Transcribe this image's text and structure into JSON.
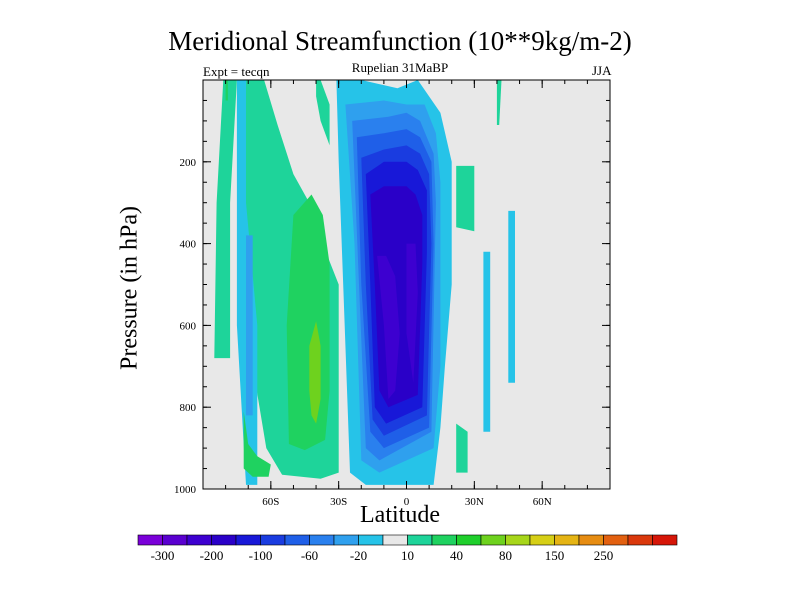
{
  "chart_data": {
    "type": "heatmap",
    "title": "Meridional Streamfunction (10**9kg/m-2)",
    "subtitle": "Rupelian  31MaBP",
    "left_label": "Expt = tecqn",
    "right_label": "JJA",
    "xlabel": "Latitude",
    "ylabel": "Pressure (in hPa)",
    "xlim": [
      -90,
      90
    ],
    "ylim": [
      1000,
      0
    ],
    "x_ticks": [
      {
        "value": -60,
        "label": "60S"
      },
      {
        "value": -30,
        "label": "30S"
      },
      {
        "value": 0,
        "label": "0"
      },
      {
        "value": 30,
        "label": "30N"
      },
      {
        "value": 60,
        "label": "60N"
      }
    ],
    "y_ticks": [
      {
        "value": 200,
        "label": "200"
      },
      {
        "value": 400,
        "label": "400"
      },
      {
        "value": 600,
        "label": "600"
      },
      {
        "value": 800,
        "label": "800"
      },
      {
        "value": 1000,
        "label": "1000"
      }
    ],
    "colorbar": {
      "colors": [
        "#7a00d9",
        "#5a00d0",
        "#3d00d0",
        "#2a00c8",
        "#1818d8",
        "#1a3ce0",
        "#1f5fe8",
        "#2a80ee",
        "#2fa0ee",
        "#26c3e8",
        "#e8e8e8",
        "#1ed49a",
        "#1fd260",
        "#1fcf2c",
        "#6ed21e",
        "#a7d61a",
        "#d6cf16",
        "#e5b414",
        "#e68c12",
        "#e26010",
        "#da380c",
        "#d61608"
      ],
      "labels": [
        "-300",
        "-200",
        "-100",
        "-60",
        "-20",
        "10",
        "40",
        "80",
        "150",
        "250"
      ]
    },
    "regions": [
      {
        "level": 10,
        "color": "#1ed49a",
        "lat": [
          -81,
          -75,
          -78,
          -78,
          -85,
          -84
        ],
        "p": [
          0,
          0,
          300,
          680,
          680,
          300
        ]
      },
      {
        "level": 10,
        "color": "#1ed49a",
        "lat": [
          -73,
          -63,
          -57,
          -50,
          -43,
          -40,
          -30,
          -30,
          -38,
          -55,
          -62,
          -68,
          -73
        ],
        "p": [
          0,
          0,
          110,
          230,
          300,
          360,
          500,
          960,
          975,
          965,
          900,
          700,
          100
        ]
      },
      {
        "level": 10,
        "color": "#1ed49a",
        "lat": [
          -40,
          -38,
          -34,
          -34,
          -38,
          -40
        ],
        "p": [
          0,
          0,
          60,
          160,
          100,
          40
        ]
      },
      {
        "level": 10,
        "color": "#1ed49a",
        "lat": [
          40,
          42,
          41,
          40
        ],
        "p": [
          0,
          0,
          110,
          110
        ]
      },
      {
        "level": 10,
        "color": "#1ed49a",
        "lat": [
          22,
          30,
          30,
          22
        ],
        "p": [
          210,
          210,
          370,
          360
        ]
      },
      {
        "level": 10,
        "color": "#1ed49a",
        "lat": [
          22,
          27,
          27,
          22
        ],
        "p": [
          840,
          860,
          960,
          960
        ]
      },
      {
        "level": -10,
        "color": "#26c3e8",
        "lat": [
          -75,
          -71,
          -71,
          -66,
          -66,
          -71,
          -75
        ],
        "p": [
          0,
          0,
          300,
          600,
          990,
          990,
          600
        ]
      },
      {
        "level": -10,
        "color": "#26c3e8",
        "lat": [
          -31,
          -20,
          -4,
          5,
          15,
          20,
          20,
          17,
          15,
          12,
          -18,
          -25,
          -28,
          -30
        ],
        "p": [
          0,
          0,
          20,
          0,
          80,
          200,
          500,
          700,
          850,
          990,
          990,
          960,
          500,
          200
        ]
      },
      {
        "level": -10,
        "color": "#26c3e8",
        "lat": [
          34,
          37,
          37,
          34
        ],
        "p": [
          420,
          420,
          860,
          860
        ]
      },
      {
        "level": -10,
        "color": "#26c3e8",
        "lat": [
          45,
          48,
          48,
          45
        ],
        "p": [
          320,
          320,
          740,
          740
        ]
      },
      {
        "level": -20,
        "color": "#2fa0ee",
        "lat": [
          -71,
          -68,
          -68,
          -71
        ],
        "p": [
          380,
          380,
          820,
          820
        ]
      },
      {
        "level": -20,
        "color": "#2fa0ee",
        "lat": [
          -27,
          -10,
          0,
          8,
          13,
          15,
          15,
          12,
          -12,
          -20,
          -23
        ],
        "p": [
          60,
          50,
          60,
          60,
          130,
          250,
          700,
          900,
          960,
          930,
          400
        ]
      },
      {
        "level": -40,
        "color": "#2a80ee",
        "lat": [
          -24,
          -8,
          0,
          6,
          12,
          13,
          11,
          -12,
          -18,
          -21
        ],
        "p": [
          100,
          90,
          80,
          100,
          180,
          300,
          860,
          930,
          900,
          500
        ]
      },
      {
        "level": -60,
        "color": "#1f5fe8",
        "lat": [
          -22,
          -10,
          0,
          6,
          11,
          12,
          10,
          -10,
          -16,
          -20
        ],
        "p": [
          140,
          130,
          120,
          140,
          200,
          400,
          850,
          900,
          860,
          500
        ]
      },
      {
        "level": -80,
        "color": "#1a3ce0",
        "lat": [
          -20,
          -10,
          0,
          6,
          10,
          11,
          9,
          -10,
          -15,
          -18
        ],
        "p": [
          190,
          170,
          160,
          180,
          230,
          400,
          820,
          870,
          830,
          500
        ]
      },
      {
        "level": -100,
        "color": "#1818d8",
        "lat": [
          -18,
          -10,
          0,
          5,
          9,
          9,
          7,
          -9,
          -14,
          -16
        ],
        "p": [
          230,
          200,
          200,
          220,
          270,
          420,
          800,
          840,
          800,
          500
        ]
      },
      {
        "level": -150,
        "color": "#2a00c8",
        "lat": [
          -16,
          -10,
          0,
          4,
          7,
          7,
          5,
          -8,
          -12,
          -14
        ],
        "p": [
          280,
          260,
          260,
          280,
          330,
          450,
          770,
          800,
          760,
          500
        ]
      },
      {
        "level": -200,
        "color": "#3d00d0",
        "lat": [
          -13,
          -9,
          -5,
          -3,
          -5,
          -8,
          -10
        ],
        "p": [
          430,
          430,
          480,
          620,
          760,
          780,
          600
        ]
      },
      {
        "level": -200,
        "color": "#3d00d0",
        "lat": [
          0,
          4,
          5,
          3,
          0
        ],
        "p": [
          400,
          400,
          520,
          740,
          620
        ]
      },
      {
        "level": 20,
        "color": "#1fd260",
        "lat": [
          -72,
          -70,
          -66,
          -63,
          -60,
          -61,
          -68,
          -72
        ],
        "p": [
          810,
          890,
          920,
          930,
          940,
          970,
          970,
          950
        ]
      },
      {
        "level": 20,
        "color": "#1fd260",
        "lat": [
          -50,
          -42,
          -37,
          -34,
          -34,
          -36,
          -45,
          -52,
          -53
        ],
        "p": [
          330,
          280,
          330,
          450,
          760,
          880,
          905,
          890,
          600
        ]
      },
      {
        "level": 20,
        "color": "#1fd260",
        "lat": [
          -80,
          -79,
          -79,
          -80
        ],
        "p": [
          0,
          0,
          50,
          50
        ]
      },
      {
        "level": 60,
        "color": "#6ed21e",
        "lat": [
          -43,
          -40,
          -38,
          -38,
          -40,
          -42,
          -43
        ],
        "p": [
          650,
          590,
          650,
          780,
          840,
          820,
          760
        ]
      }
    ]
  }
}
